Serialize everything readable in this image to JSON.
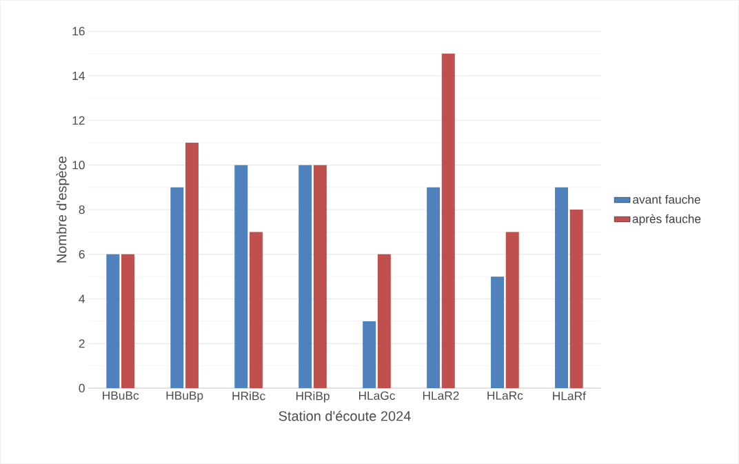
{
  "chart_data": {
    "type": "bar",
    "xlabel": "Station d'écoute 2024",
    "ylabel": "Nombre d'espèce",
    "categories": [
      "HBuBc",
      "HBuBp",
      "HRiBc",
      "HRiBp",
      "HLaGc",
      "HLaR2",
      "HLaRc",
      "HLaRf"
    ],
    "series": [
      {
        "name": "avant fauche",
        "color": "#4f81bd",
        "values": [
          6,
          9,
          10,
          10,
          3,
          9,
          5,
          9
        ]
      },
      {
        "name": "après fauche",
        "color": "#c0504d",
        "values": [
          6,
          11,
          7,
          10,
          6,
          15,
          7,
          8
        ]
      }
    ],
    "ylim": [
      0,
      16
    ],
    "yticks": [
      0,
      2,
      4,
      6,
      8,
      10,
      12,
      14,
      16
    ],
    "grid": true,
    "legend": "right"
  }
}
